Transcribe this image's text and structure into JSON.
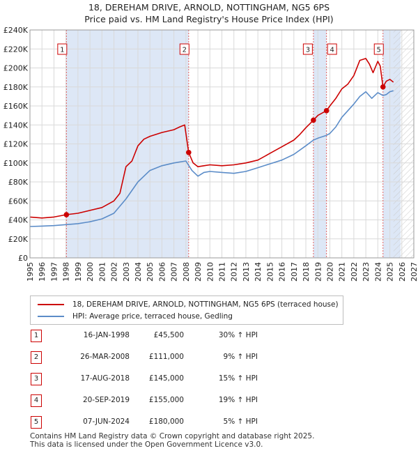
{
  "title_line1": "18, DEREHAM DRIVE, ARNOLD, NOTTINGHAM, NG5 6PS",
  "title_line2": "Price paid vs. HM Land Registry's House Price Index (HPI)",
  "colors": {
    "price_line": "#cc0000",
    "hpi_line": "#5b8cc8",
    "shade": "#dde7f6",
    "grid": "#d9d9d9",
    "marker_line": "#e06060"
  },
  "legend": {
    "price_label": "18, DEREHAM DRIVE, ARNOLD, NOTTINGHAM, NG5 6PS (terraced house)",
    "hpi_label": "HPI: Average price, terraced house, Gedling"
  },
  "sales": [
    {
      "num": "1",
      "date": "16-JAN-1998",
      "price": "£45,500",
      "hpi": "30% ↑ HPI"
    },
    {
      "num": "2",
      "date": "26-MAR-2008",
      "price": "£111,000",
      "hpi": "9% ↑ HPI"
    },
    {
      "num": "3",
      "date": "17-AUG-2018",
      "price": "£145,000",
      "hpi": "15% ↑ HPI"
    },
    {
      "num": "4",
      "date": "20-SEP-2019",
      "price": "£155,000",
      "hpi": "19% ↑ HPI"
    },
    {
      "num": "5",
      "date": "07-JUN-2024",
      "price": "£180,000",
      "hpi": "5% ↑ HPI"
    }
  ],
  "footer_line1": "Contains HM Land Registry data © Crown copyright and database right 2025.",
  "footer_line2": "This data is licensed under the Open Government Licence v3.0.",
  "chart_data": {
    "type": "line",
    "title": "18, DEREHAM DRIVE, ARNOLD, NOTTINGHAM, NG5 6PS",
    "subtitle": "Price paid vs. HM Land Registry's House Price Index (HPI)",
    "xlabel": "",
    "ylabel": "",
    "xlim": [
      1995,
      2027
    ],
    "ylim": [
      0,
      240000
    ],
    "x_ticks": [
      1995,
      1996,
      1997,
      1998,
      1999,
      2000,
      2001,
      2002,
      2003,
      2004,
      2005,
      2006,
      2007,
      2008,
      2009,
      2010,
      2011,
      2012,
      2013,
      2014,
      2015,
      2016,
      2017,
      2018,
      2019,
      2020,
      2021,
      2022,
      2023,
      2024,
      2025,
      2026,
      2027
    ],
    "y_ticks": [
      0,
      20000,
      40000,
      60000,
      80000,
      100000,
      120000,
      140000,
      160000,
      180000,
      200000,
      220000,
      240000
    ],
    "y_tick_labels": [
      "£0",
      "£20K",
      "£40K",
      "£60K",
      "£80K",
      "£100K",
      "£120K",
      "£140K",
      "£160K",
      "£180K",
      "£200K",
      "£220K",
      "£240K"
    ],
    "grid": true,
    "shaded_periods": [
      [
        1998.04,
        2008.23
      ],
      [
        2018.63,
        2019.72
      ],
      [
        2024.43,
        2025.9
      ]
    ],
    "future_hatch_from": 2025.3,
    "series": [
      {
        "name": "18, DEREHAM DRIVE, ARNOLD, NOTTINGHAM, NG5 6PS (terraced house)",
        "x": [
          1995.0,
          1996.0,
          1997.0,
          1998.04,
          1999.0,
          2000.0,
          2001.0,
          2002.0,
          2002.5,
          2003.0,
          2003.5,
          2004.0,
          2004.5,
          2005.0,
          2006.0,
          2007.0,
          2007.5,
          2007.9,
          2008.23,
          2008.6,
          2009.0,
          2009.5,
          2010.0,
          2011.0,
          2012.0,
          2013.0,
          2014.0,
          2015.0,
          2016.0,
          2017.0,
          2017.5,
          2018.0,
          2018.63,
          2019.0,
          2019.72,
          2020.0,
          2020.5,
          2021.0,
          2021.5,
          2022.0,
          2022.5,
          2023.0,
          2023.3,
          2023.6,
          2024.0,
          2024.2,
          2024.43,
          2024.7,
          2025.0,
          2025.3
        ],
        "values": [
          43000,
          42000,
          43000,
          45500,
          47000,
          50000,
          53000,
          60000,
          68000,
          96000,
          102000,
          118000,
          125000,
          128000,
          132000,
          135000,
          138000,
          140000,
          111000,
          100000,
          96000,
          97000,
          98000,
          97000,
          98000,
          100000,
          103000,
          110000,
          117000,
          124000,
          130000,
          137000,
          145000,
          150000,
          155000,
          160000,
          168000,
          178000,
          183000,
          192000,
          208000,
          210000,
          204000,
          195000,
          207000,
          202000,
          180000,
          186000,
          188000,
          185000
        ]
      },
      {
        "name": "HPI: Average price, terraced house, Gedling",
        "x": [
          1995.0,
          1996.0,
          1997.0,
          1998.0,
          1999.0,
          2000.0,
          2001.0,
          2002.0,
          2003.0,
          2004.0,
          2005.0,
          2006.0,
          2007.0,
          2008.0,
          2008.5,
          2009.0,
          2009.5,
          2010.0,
          2011.0,
          2012.0,
          2013.0,
          2014.0,
          2015.0,
          2016.0,
          2017.0,
          2018.0,
          2018.63,
          2019.0,
          2019.72,
          2020.0,
          2020.5,
          2021.0,
          2021.5,
          2022.0,
          2022.5,
          2023.0,
          2023.5,
          2024.0,
          2024.43,
          2024.7,
          2025.0,
          2025.3
        ],
        "values": [
          33000,
          33500,
          34000,
          35000,
          36000,
          38000,
          41000,
          47000,
          62000,
          80000,
          92000,
          97000,
          100000,
          102000,
          92000,
          86000,
          90000,
          91000,
          90000,
          89000,
          91000,
          95000,
          99000,
          103000,
          109000,
          118000,
          124000,
          126000,
          129000,
          131000,
          138000,
          148000,
          155000,
          162000,
          170000,
          175000,
          168000,
          174000,
          171000,
          172000,
          175000,
          176000
        ]
      }
    ],
    "sale_markers": [
      {
        "label": "1",
        "x": 1998.04,
        "y": 45500
      },
      {
        "label": "2",
        "x": 2008.23,
        "y": 111000
      },
      {
        "label": "3",
        "x": 2018.63,
        "y": 145000
      },
      {
        "label": "4",
        "x": 2019.72,
        "y": 155000
      },
      {
        "label": "5",
        "x": 2024.43,
        "y": 180000
      }
    ]
  }
}
